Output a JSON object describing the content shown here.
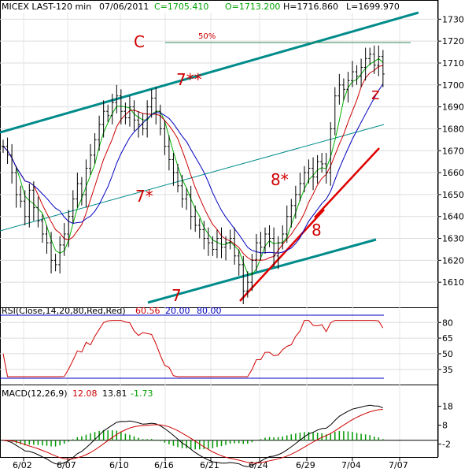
{
  "chart_data": {
    "type": "line",
    "header": {
      "symbol": "MICEX LAST-120 min",
      "date": "07/06/2011",
      "close": "C=1705.410",
      "open": "O=1713.200",
      "high": "H=1716.860",
      "low": "L=1699.970"
    },
    "price_axis": {
      "ticks": [
        1610,
        1620,
        1630,
        1640,
        1650,
        1660,
        1670,
        1680,
        1690,
        1700,
        1710,
        1720,
        1730
      ],
      "ylim": [
        1600,
        1733
      ]
    },
    "x_axis": {
      "ticks": [
        "6/02",
        "6/07",
        "6/10",
        "6/16",
        "6/21",
        "6/24",
        "6/29",
        "7/04",
        "7/07"
      ]
    },
    "price_closes": [
      1672,
      1668,
      1660,
      1650,
      1647,
      1640,
      1652,
      1644,
      1638,
      1632,
      1628,
      1620,
      1618,
      1627,
      1632,
      1640,
      1648,
      1655,
      1650,
      1662,
      1668,
      1675,
      1682,
      1688,
      1686,
      1692,
      1695,
      1688,
      1685,
      1690,
      1684,
      1682,
      1680,
      1690,
      1694,
      1688,
      1680,
      1672,
      1666,
      1660,
      1654,
      1648,
      1650,
      1640,
      1636,
      1634,
      1630,
      1628,
      1625,
      1630,
      1626,
      1628,
      1630,
      1622,
      1618,
      1606,
      1610,
      1620,
      1628,
      1626,
      1632,
      1630,
      1622,
      1628,
      1632,
      1640,
      1645,
      1650,
      1655,
      1660,
      1662,
      1658,
      1665,
      1664,
      1660,
      1680,
      1695,
      1700,
      1698,
      1702,
      1706,
      1704,
      1708,
      1712,
      1714,
      1709,
      1713,
      1705
    ],
    "annotations": [
      "C",
      "7**",
      "7*",
      "7",
      "8*",
      "8",
      "z",
      "50%"
    ],
    "indicators": {
      "rsi": {
        "label": "RSI(Close,14,20,80,Red,Red)",
        "value": "60.56",
        "lower": "20.00",
        "upper": "80.00",
        "ticks": [
          35,
          50,
          65,
          80
        ],
        "ylim": [
          25,
          87
        ]
      },
      "macd": {
        "label": "MACD(12,26,9)",
        "macd": "12.08",
        "signal": "13.81",
        "hist": "-1.73",
        "ticks": [
          -2,
          8,
          18
        ],
        "ylim": [
          -8,
          22
        ]
      }
    }
  }
}
